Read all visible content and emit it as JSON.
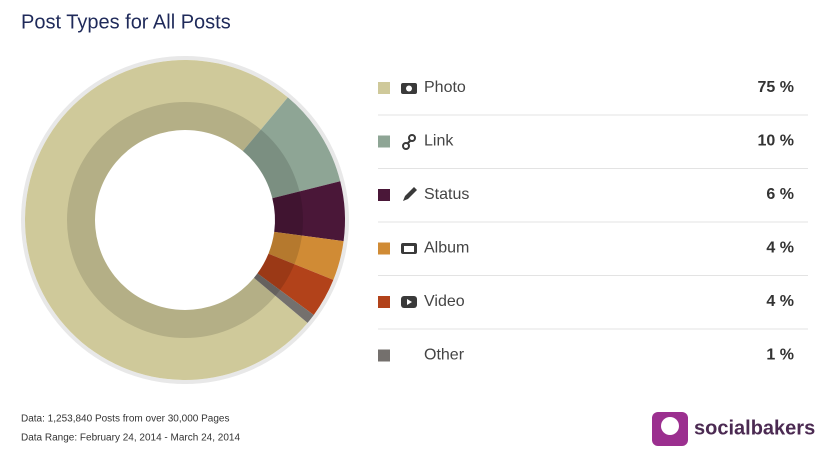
{
  "chart_data": {
    "type": "donut",
    "title": "Post Types for All Posts",
    "categories": [
      "Photo",
      "Link",
      "Status",
      "Album",
      "Video",
      "Other"
    ],
    "values": [
      75,
      10,
      6,
      4,
      4,
      1
    ],
    "value_labels": [
      "75 %",
      "10 %",
      "6 %",
      "4 %",
      "4 %",
      "1 %"
    ],
    "colors": [
      "#cfc99a",
      "#8ea595",
      "#4a1738",
      "#d08b35",
      "#b2421a",
      "#74706d"
    ],
    "notes": [
      "Data: 1,253,840 Posts from over 30,000 Pages",
      "Data Range: February 24, 2014 - March 24, 2014"
    ],
    "brand": "socialbakers"
  }
}
